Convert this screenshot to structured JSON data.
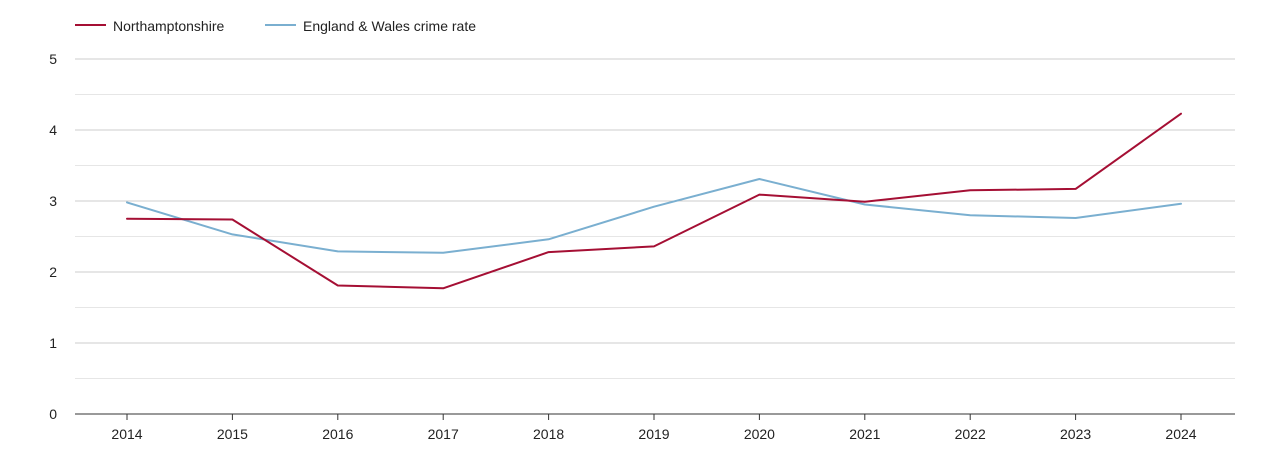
{
  "chart_data": {
    "type": "line",
    "title": "",
    "xlabel": "",
    "ylabel": "",
    "categories": [
      "2014",
      "2015",
      "2016",
      "2017",
      "2018",
      "2019",
      "2020",
      "2021",
      "2022",
      "2023",
      "2024"
    ],
    "ylim": [
      0,
      5
    ],
    "y_ticks": [
      "0",
      "1",
      "2",
      "3",
      "4",
      "5"
    ],
    "grid": true,
    "legend_position": "top-left",
    "series": [
      {
        "name": "Northamptonshire",
        "color": "#a50f34",
        "values": [
          2.75,
          2.74,
          1.81,
          1.77,
          2.28,
          2.36,
          3.09,
          2.99,
          3.15,
          3.17,
          4.23
        ]
      },
      {
        "name": "England & Wales crime rate",
        "color": "#7aafd0",
        "values": [
          2.98,
          2.53,
          2.29,
          2.27,
          2.46,
          2.92,
          3.31,
          2.95,
          2.8,
          2.76,
          2.96
        ]
      }
    ]
  },
  "colors": {
    "major_grid": "#cccccc",
    "minor_grid": "#e6e6e6",
    "axis": "#333333",
    "tick_text": "#222222"
  }
}
